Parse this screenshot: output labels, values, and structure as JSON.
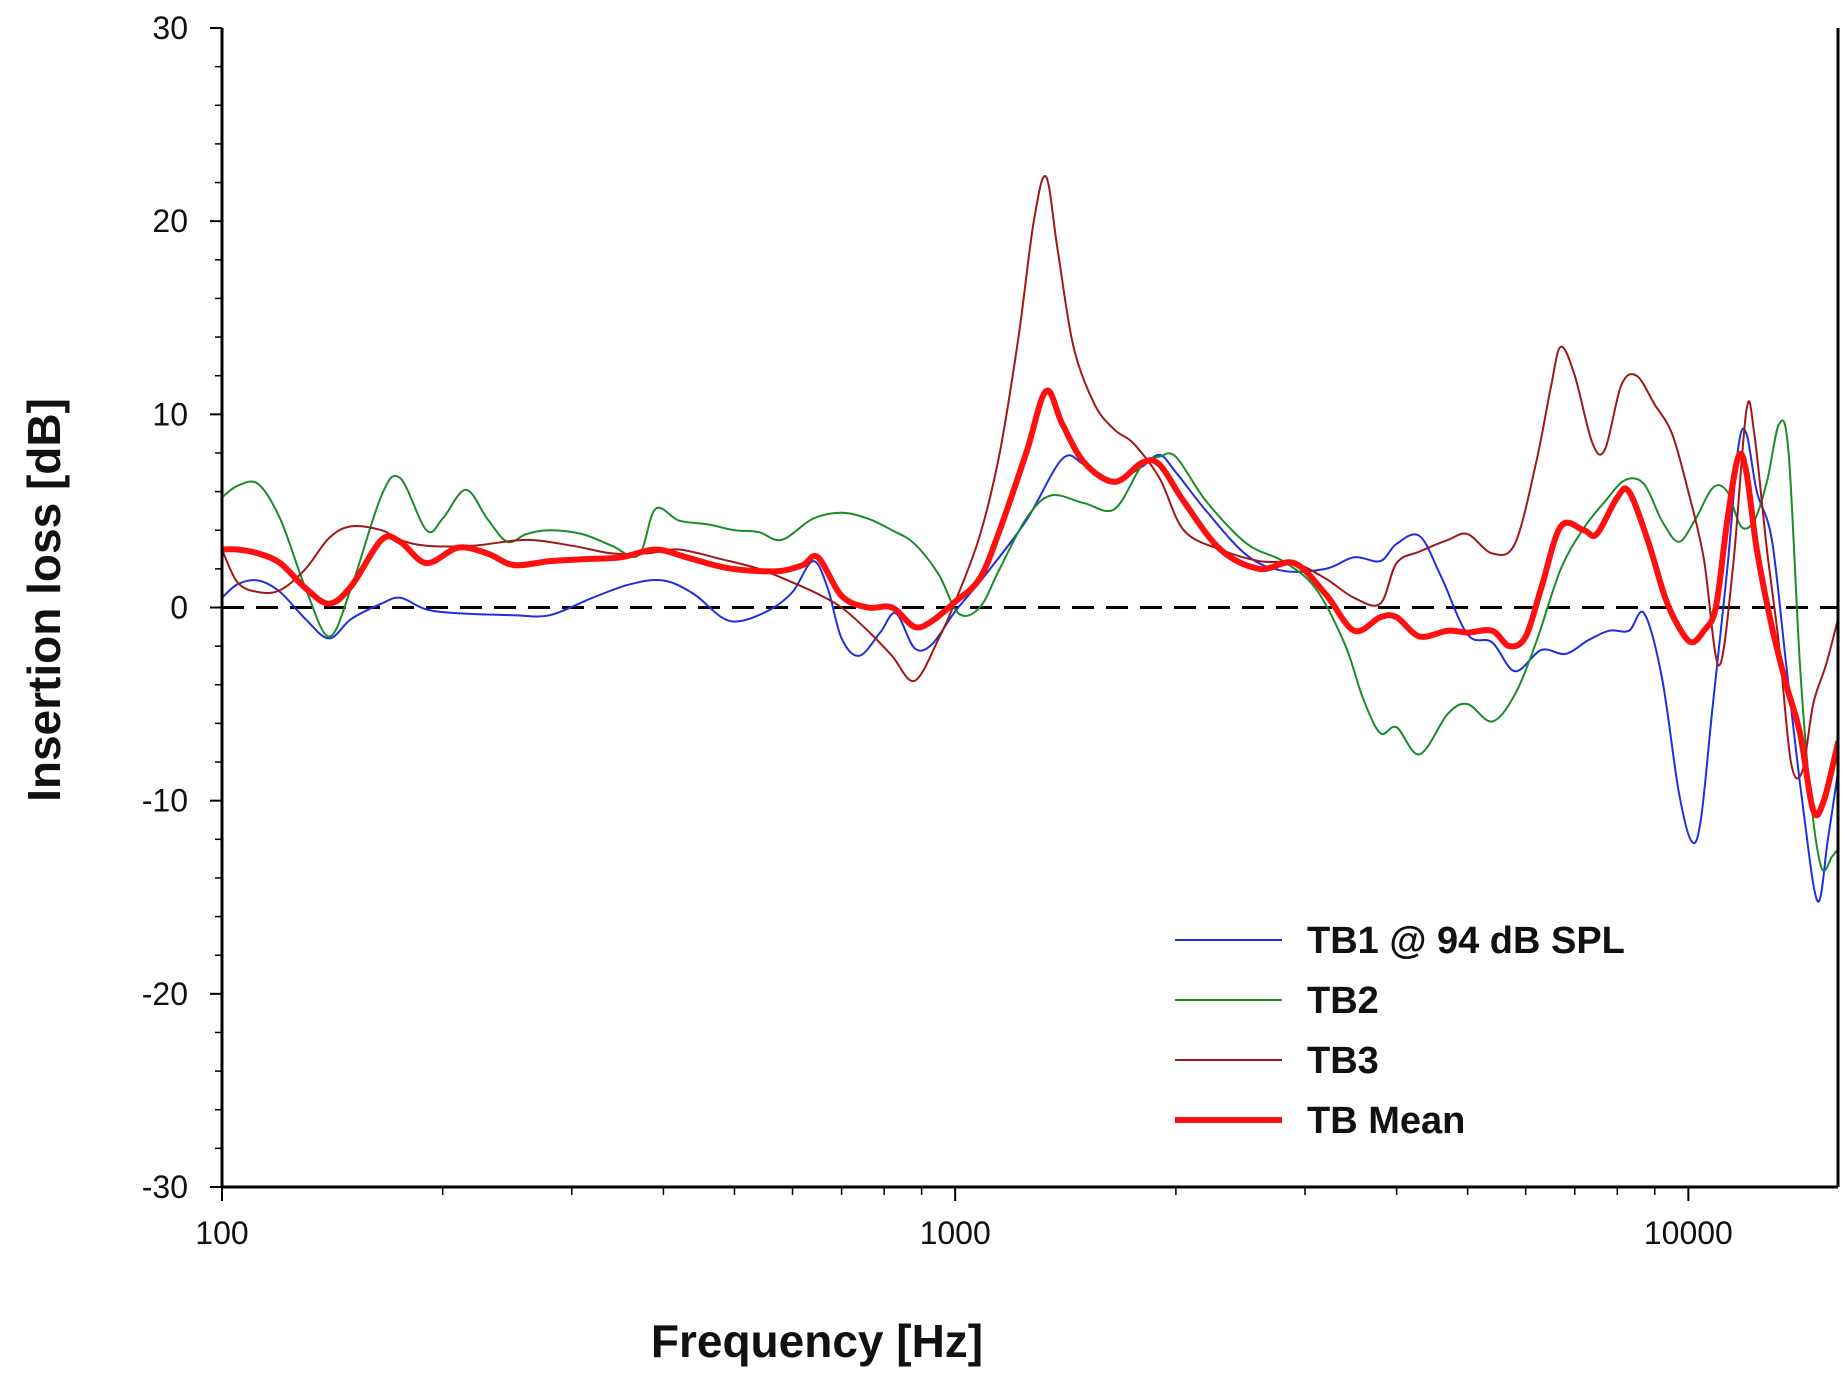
{
  "chart_data": {
    "type": "line",
    "title": "",
    "xlabel": "Frequency [Hz]",
    "ylabel": "Insertion loss [dB]",
    "xscale": "log",
    "xlim": [
      100,
      16000
    ],
    "ylim": [
      -30,
      30
    ],
    "x_ticks": [
      100,
      1000,
      10000
    ],
    "x_tick_labels": [
      "100",
      "1000",
      "10000"
    ],
    "y_ticks": [
      -30,
      -20,
      -10,
      0,
      10,
      20,
      30
    ],
    "y_tick_labels": [
      "-30",
      "-20",
      "-10",
      "0",
      "10",
      "20",
      "30"
    ],
    "reference_line": {
      "y": 0,
      "style": "dashed"
    },
    "legend_position": "bottom-right",
    "series": [
      {
        "name": "TB1 @ 94 dB SPL",
        "color": "#1f2fe0",
        "width": 2,
        "points": [
          [
            100,
            0.5
          ],
          [
            105,
            1.2
          ],
          [
            112,
            1.4
          ],
          [
            120,
            0.8
          ],
          [
            130,
            -0.6
          ],
          [
            140,
            -1.6
          ],
          [
            150,
            -0.6
          ],
          [
            165,
            0.2
          ],
          [
            175,
            0.5
          ],
          [
            190,
            -0.1
          ],
          [
            210,
            -0.3
          ],
          [
            250,
            -0.4
          ],
          [
            280,
            -0.4
          ],
          [
            320,
            0.5
          ],
          [
            360,
            1.2
          ],
          [
            400,
            1.4
          ],
          [
            440,
            0.7
          ],
          [
            480,
            -0.5
          ],
          [
            510,
            -0.7
          ],
          [
            560,
            -0.1
          ],
          [
            600,
            0.8
          ],
          [
            640,
            2.4
          ],
          [
            670,
            1.0
          ],
          [
            700,
            -1.6
          ],
          [
            740,
            -2.5
          ],
          [
            790,
            -1.3
          ],
          [
            830,
            -0.3
          ],
          [
            880,
            -2.1
          ],
          [
            930,
            -1.9
          ],
          [
            1000,
            -0.2
          ],
          [
            1100,
            1.7
          ],
          [
            1250,
            4.5
          ],
          [
            1400,
            7.7
          ],
          [
            1500,
            7.4
          ],
          [
            1650,
            6.6
          ],
          [
            1800,
            7.3
          ],
          [
            1900,
            7.9
          ],
          [
            2000,
            7.0
          ],
          [
            2200,
            5.0
          ],
          [
            2500,
            2.7
          ],
          [
            2800,
            1.9
          ],
          [
            3200,
            2.0
          ],
          [
            3500,
            2.6
          ],
          [
            3800,
            2.4
          ],
          [
            4000,
            3.3
          ],
          [
            4300,
            3.7
          ],
          [
            4600,
            1.6
          ],
          [
            5000,
            -1.4
          ],
          [
            5400,
            -1.8
          ],
          [
            5800,
            -3.3
          ],
          [
            6300,
            -2.2
          ],
          [
            6800,
            -2.4
          ],
          [
            7300,
            -1.7
          ],
          [
            7800,
            -1.2
          ],
          [
            8300,
            -1.2
          ],
          [
            8700,
            -0.3
          ],
          [
            9200,
            -3.6
          ],
          [
            9700,
            -9.5
          ],
          [
            10100,
            -12.1
          ],
          [
            10400,
            -11.0
          ],
          [
            10800,
            -5.0
          ],
          [
            11300,
            2.0
          ],
          [
            11700,
            8.3
          ],
          [
            12000,
            9.0
          ],
          [
            12400,
            6.0
          ],
          [
            13000,
            3.5
          ],
          [
            13600,
            -3.0
          ],
          [
            14300,
            -10.0
          ],
          [
            15000,
            -15.2
          ],
          [
            15500,
            -12.0
          ],
          [
            16000,
            -8.5
          ]
        ]
      },
      {
        "name": "TB2",
        "color": "#1a8c2a",
        "width": 2,
        "points": [
          [
            100,
            5.7
          ],
          [
            105,
            6.3
          ],
          [
            112,
            6.4
          ],
          [
            120,
            4.6
          ],
          [
            130,
            1.0
          ],
          [
            140,
            -1.5
          ],
          [
            150,
            1.0
          ],
          [
            165,
            5.8
          ],
          [
            175,
            6.7
          ],
          [
            190,
            4.0
          ],
          [
            200,
            4.6
          ],
          [
            215,
            6.1
          ],
          [
            230,
            4.6
          ],
          [
            245,
            3.4
          ],
          [
            260,
            3.8
          ],
          [
            280,
            4.0
          ],
          [
            310,
            3.8
          ],
          [
            340,
            3.2
          ],
          [
            370,
            2.7
          ],
          [
            390,
            5.1
          ],
          [
            420,
            4.5
          ],
          [
            460,
            4.3
          ],
          [
            500,
            4.0
          ],
          [
            540,
            3.9
          ],
          [
            580,
            3.5
          ],
          [
            640,
            4.6
          ],
          [
            700,
            4.9
          ],
          [
            760,
            4.6
          ],
          [
            820,
            4.0
          ],
          [
            880,
            3.3
          ],
          [
            950,
            1.7
          ],
          [
            1010,
            -0.3
          ],
          [
            1080,
            0.0
          ],
          [
            1150,
            2.0
          ],
          [
            1250,
            4.6
          ],
          [
            1350,
            5.8
          ],
          [
            1500,
            5.4
          ],
          [
            1650,
            5.1
          ],
          [
            1800,
            7.4
          ],
          [
            1900,
            7.8
          ],
          [
            2000,
            7.8
          ],
          [
            2200,
            5.5
          ],
          [
            2500,
            3.3
          ],
          [
            2800,
            2.4
          ],
          [
            3100,
            1.0
          ],
          [
            3400,
            -1.9
          ],
          [
            3600,
            -4.7
          ],
          [
            3800,
            -6.5
          ],
          [
            4000,
            -6.2
          ],
          [
            4300,
            -7.6
          ],
          [
            4700,
            -5.5
          ],
          [
            5000,
            -5.0
          ],
          [
            5400,
            -5.9
          ],
          [
            5800,
            -4.5
          ],
          [
            6200,
            -1.8
          ],
          [
            6700,
            2.0
          ],
          [
            7200,
            4.1
          ],
          [
            7700,
            5.5
          ],
          [
            8200,
            6.6
          ],
          [
            8700,
            6.4
          ],
          [
            9200,
            4.5
          ],
          [
            9700,
            3.4
          ],
          [
            10200,
            4.5
          ],
          [
            10800,
            6.2
          ],
          [
            11300,
            6.0
          ],
          [
            11800,
            4.2
          ],
          [
            12300,
            4.5
          ],
          [
            12800,
            6.5
          ],
          [
            13300,
            9.5
          ],
          [
            13700,
            8.0
          ],
          [
            14200,
            -3.0
          ],
          [
            14700,
            -10.0
          ],
          [
            15200,
            -13.5
          ],
          [
            15700,
            -12.9
          ],
          [
            16000,
            -12.5
          ]
        ]
      },
      {
        "name": "TB3",
        "color": "#a01818",
        "width": 2,
        "points": [
          [
            100,
            3.0
          ],
          [
            105,
            1.3
          ],
          [
            112,
            0.8
          ],
          [
            120,
            0.9
          ],
          [
            130,
            2.0
          ],
          [
            140,
            3.6
          ],
          [
            150,
            4.2
          ],
          [
            165,
            4.0
          ],
          [
            175,
            3.5
          ],
          [
            190,
            3.2
          ],
          [
            220,
            3.2
          ],
          [
            260,
            3.5
          ],
          [
            300,
            3.2
          ],
          [
            340,
            2.8
          ],
          [
            380,
            2.8
          ],
          [
            420,
            3.0
          ],
          [
            480,
            2.5
          ],
          [
            540,
            2.0
          ],
          [
            600,
            1.3
          ],
          [
            650,
            0.7
          ],
          [
            700,
            0.0
          ],
          [
            760,
            -1.2
          ],
          [
            820,
            -2.5
          ],
          [
            880,
            -3.8
          ],
          [
            950,
            -1.6
          ],
          [
            1000,
            0.3
          ],
          [
            1080,
            3.7
          ],
          [
            1150,
            8.0
          ],
          [
            1220,
            14.0
          ],
          [
            1280,
            20.0
          ],
          [
            1330,
            22.3
          ],
          [
            1380,
            18.5
          ],
          [
            1450,
            13.5
          ],
          [
            1550,
            10.5
          ],
          [
            1650,
            9.2
          ],
          [
            1750,
            8.5
          ],
          [
            1900,
            6.7
          ],
          [
            2050,
            4.0
          ],
          [
            2300,
            3.0
          ],
          [
            2600,
            2.4
          ],
          [
            2900,
            2.3
          ],
          [
            3200,
            1.5
          ],
          [
            3500,
            0.5
          ],
          [
            3800,
            0.2
          ],
          [
            4000,
            2.3
          ],
          [
            4300,
            2.9
          ],
          [
            4700,
            3.5
          ],
          [
            5000,
            3.8
          ],
          [
            5400,
            2.8
          ],
          [
            5800,
            3.3
          ],
          [
            6200,
            7.5
          ],
          [
            6500,
            11.5
          ],
          [
            6700,
            13.5
          ],
          [
            7000,
            12.0
          ],
          [
            7400,
            8.5
          ],
          [
            7700,
            8.2
          ],
          [
            8100,
            11.5
          ],
          [
            8500,
            12.0
          ],
          [
            9000,
            10.5
          ],
          [
            9500,
            9.0
          ],
          [
            10000,
            6.0
          ],
          [
            10500,
            2.5
          ],
          [
            11000,
            -3.0
          ],
          [
            11500,
            2.0
          ],
          [
            12000,
            10.2
          ],
          [
            12300,
            9.0
          ],
          [
            12800,
            3.0
          ],
          [
            13300,
            -2.0
          ],
          [
            13800,
            -8.0
          ],
          [
            14300,
            -8.5
          ],
          [
            14800,
            -5.0
          ],
          [
            15400,
            -3.0
          ],
          [
            16000,
            -0.6
          ]
        ]
      },
      {
        "name": "TB Mean",
        "color": "#ff1010",
        "width": 6,
        "points": [
          [
            100,
            3.0
          ],
          [
            105,
            3.0
          ],
          [
            112,
            2.8
          ],
          [
            120,
            2.3
          ],
          [
            130,
            1.0
          ],
          [
            140,
            0.2
          ],
          [
            150,
            1.1
          ],
          [
            165,
            3.5
          ],
          [
            175,
            3.4
          ],
          [
            190,
            2.3
          ],
          [
            210,
            3.1
          ],
          [
            230,
            2.8
          ],
          [
            250,
            2.2
          ],
          [
            280,
            2.4
          ],
          [
            310,
            2.5
          ],
          [
            350,
            2.6
          ],
          [
            390,
            3.0
          ],
          [
            430,
            2.6
          ],
          [
            480,
            2.1
          ],
          [
            530,
            1.9
          ],
          [
            580,
            1.9
          ],
          [
            620,
            2.2
          ],
          [
            650,
            2.6
          ],
          [
            700,
            0.6
          ],
          [
            760,
            0.0
          ],
          [
            820,
            0.0
          ],
          [
            880,
            -1.0
          ],
          [
            930,
            -0.7
          ],
          [
            1000,
            0.3
          ],
          [
            1080,
            1.5
          ],
          [
            1150,
            4.0
          ],
          [
            1250,
            8.0
          ],
          [
            1330,
            11.2
          ],
          [
            1400,
            9.5
          ],
          [
            1500,
            7.5
          ],
          [
            1650,
            6.5
          ],
          [
            1800,
            7.5
          ],
          [
            1900,
            7.4
          ],
          [
            2050,
            5.5
          ],
          [
            2300,
            3.0
          ],
          [
            2600,
            2.0
          ],
          [
            2900,
            2.3
          ],
          [
            3200,
            0.7
          ],
          [
            3500,
            -1.2
          ],
          [
            3800,
            -0.5
          ],
          [
            4000,
            -0.5
          ],
          [
            4300,
            -1.5
          ],
          [
            4700,
            -1.2
          ],
          [
            5000,
            -1.3
          ],
          [
            5400,
            -1.2
          ],
          [
            5700,
            -2.0
          ],
          [
            6000,
            -1.5
          ],
          [
            6300,
            1.0
          ],
          [
            6700,
            4.2
          ],
          [
            7200,
            4.0
          ],
          [
            7500,
            3.8
          ],
          [
            8000,
            5.7
          ],
          [
            8300,
            6.0
          ],
          [
            8800,
            3.5
          ],
          [
            9300,
            0.5
          ],
          [
            9700,
            -1.0
          ],
          [
            10100,
            -1.8
          ],
          [
            10500,
            -1.2
          ],
          [
            10900,
            0.0
          ],
          [
            11300,
            4.5
          ],
          [
            11700,
            7.8
          ],
          [
            12000,
            7.0
          ],
          [
            12400,
            3.0
          ],
          [
            13000,
            -1.0
          ],
          [
            13600,
            -4.0
          ],
          [
            14200,
            -6.5
          ],
          [
            14800,
            -10.5
          ],
          [
            15300,
            -10.0
          ],
          [
            16000,
            -7.0
          ]
        ]
      }
    ]
  }
}
